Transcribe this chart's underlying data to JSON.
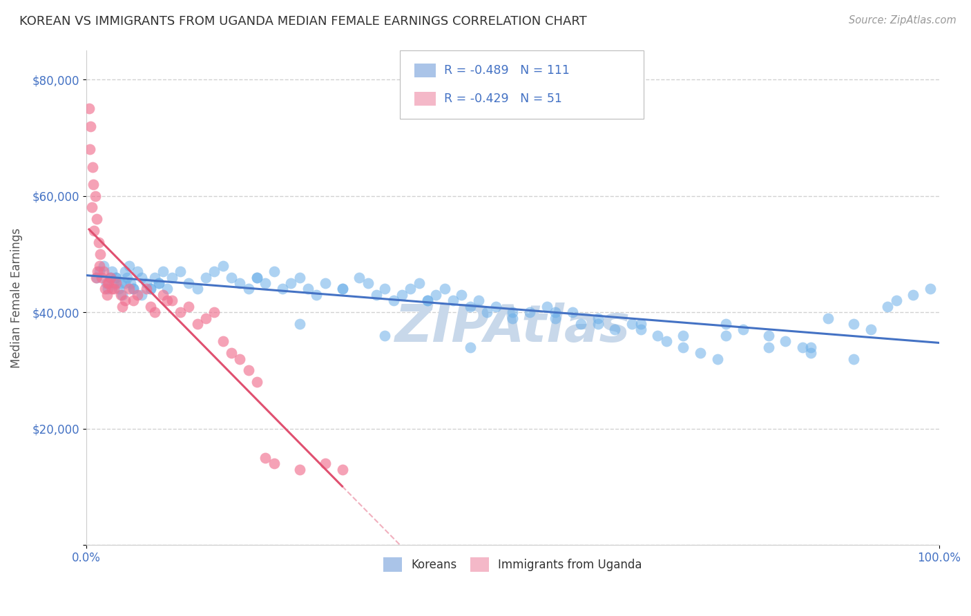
{
  "title": "KOREAN VS IMMIGRANTS FROM UGANDA MEDIAN FEMALE EARNINGS CORRELATION CHART",
  "source": "Source: ZipAtlas.com",
  "ylabel": "Median Female Earnings",
  "xlim": [
    0,
    100
  ],
  "ylim": [
    0,
    85000
  ],
  "yticks": [
    0,
    20000,
    40000,
    60000,
    80000
  ],
  "ytick_labels": [
    "",
    "$20,000",
    "$40,000",
    "$60,000",
    "$80,000"
  ],
  "legend_korean_color": "#aac4e8",
  "legend_uganda_color": "#f4b8c8",
  "korean_color": "#6aaee8",
  "uganda_color": "#f07090",
  "korean_line_color": "#4472c4",
  "uganda_line_color": "#e05070",
  "watermark_color": "#c8d8ea",
  "background_color": "#ffffff",
  "grid_color": "#cccccc",
  "R_korean": -0.489,
  "N_korean": 111,
  "R_uganda": -0.429,
  "N_uganda": 51,
  "title_color": "#333333",
  "axis_label_color": "#555555",
  "tick_color": "#4472c4",
  "legend_text_color": "#333333",
  "legend_value_color": "#4472c4",
  "korean_scatter_x": [
    1.2,
    1.5,
    2.0,
    2.3,
    2.5,
    2.8,
    3.0,
    3.2,
    3.5,
    3.8,
    4.0,
    4.2,
    4.5,
    4.8,
    5.0,
    5.2,
    5.5,
    6.0,
    6.5,
    7.0,
    7.5,
    8.0,
    8.5,
    9.0,
    9.5,
    10.0,
    11.0,
    12.0,
    13.0,
    14.0,
    15.0,
    16.0,
    17.0,
    18.0,
    19.0,
    20.0,
    21.0,
    22.0,
    23.0,
    24.0,
    25.0,
    26.0,
    27.0,
    28.0,
    30.0,
    32.0,
    33.0,
    34.0,
    35.0,
    36.0,
    37.0,
    38.0,
    39.0,
    40.0,
    41.0,
    42.0,
    43.0,
    44.0,
    45.0,
    46.0,
    47.0,
    48.0,
    50.0,
    52.0,
    54.0,
    55.0,
    57.0,
    58.0,
    60.0,
    62.0,
    64.0,
    65.0,
    67.0,
    68.0,
    70.0,
    72.0,
    74.0,
    75.0,
    77.0,
    80.0,
    82.0,
    84.0,
    85.0,
    87.0,
    90.0,
    92.0,
    94.0,
    95.0,
    97.0,
    99.0,
    3.5,
    4.5,
    5.5,
    6.5,
    7.5,
    8.5,
    25.0,
    35.0,
    45.0,
    55.0,
    65.0,
    75.0,
    85.0,
    20.0,
    30.0,
    40.0,
    50.0,
    60.0,
    70.0,
    80.0,
    90.0
  ],
  "korean_scatter_y": [
    46000,
    47000,
    48000,
    45000,
    44000,
    46000,
    47000,
    45000,
    46000,
    44000,
    45000,
    43000,
    47000,
    46000,
    48000,
    45000,
    44000,
    47000,
    46000,
    45000,
    44000,
    46000,
    45000,
    47000,
    44000,
    46000,
    47000,
    45000,
    44000,
    46000,
    47000,
    48000,
    46000,
    45000,
    44000,
    46000,
    45000,
    47000,
    44000,
    45000,
    46000,
    44000,
    43000,
    45000,
    44000,
    46000,
    45000,
    43000,
    44000,
    42000,
    43000,
    44000,
    45000,
    42000,
    43000,
    44000,
    42000,
    43000,
    41000,
    42000,
    40000,
    41000,
    39000,
    40000,
    41000,
    39000,
    40000,
    38000,
    39000,
    37000,
    38000,
    37000,
    36000,
    35000,
    34000,
    33000,
    32000,
    38000,
    37000,
    36000,
    35000,
    34000,
    33000,
    39000,
    38000,
    37000,
    41000,
    42000,
    43000,
    44000,
    46000,
    45000,
    44000,
    43000,
    44000,
    45000,
    38000,
    36000,
    34000,
    40000,
    38000,
    36000,
    34000,
    46000,
    44000,
    42000,
    40000,
    38000,
    36000,
    34000,
    32000
  ],
  "uganda_scatter_x": [
    0.3,
    0.5,
    0.7,
    0.8,
    1.0,
    1.2,
    1.4,
    1.5,
    1.6,
    1.8,
    2.0,
    2.2,
    2.4,
    2.6,
    2.8,
    3.0,
    3.5,
    4.0,
    4.5,
    5.0,
    6.0,
    7.0,
    8.0,
    9.0,
    10.0,
    11.0,
    12.0,
    13.0,
    15.0,
    16.0,
    17.0,
    18.0,
    19.0,
    20.0,
    22.0,
    25.0,
    28.0,
    30.0,
    0.4,
    0.6,
    0.9,
    1.1,
    1.3,
    2.5,
    3.2,
    4.2,
    5.5,
    7.5,
    9.5,
    14.0,
    21.0
  ],
  "uganda_scatter_y": [
    75000,
    72000,
    65000,
    62000,
    60000,
    56000,
    52000,
    48000,
    50000,
    46000,
    47000,
    44000,
    43000,
    45000,
    46000,
    44000,
    45000,
    43000,
    42000,
    44000,
    43000,
    44000,
    40000,
    43000,
    42000,
    40000,
    41000,
    38000,
    40000,
    35000,
    33000,
    32000,
    30000,
    28000,
    14000,
    13000,
    14000,
    13000,
    68000,
    58000,
    54000,
    46000,
    47000,
    45000,
    44000,
    41000,
    42000,
    41000,
    42000,
    39000,
    15000
  ]
}
